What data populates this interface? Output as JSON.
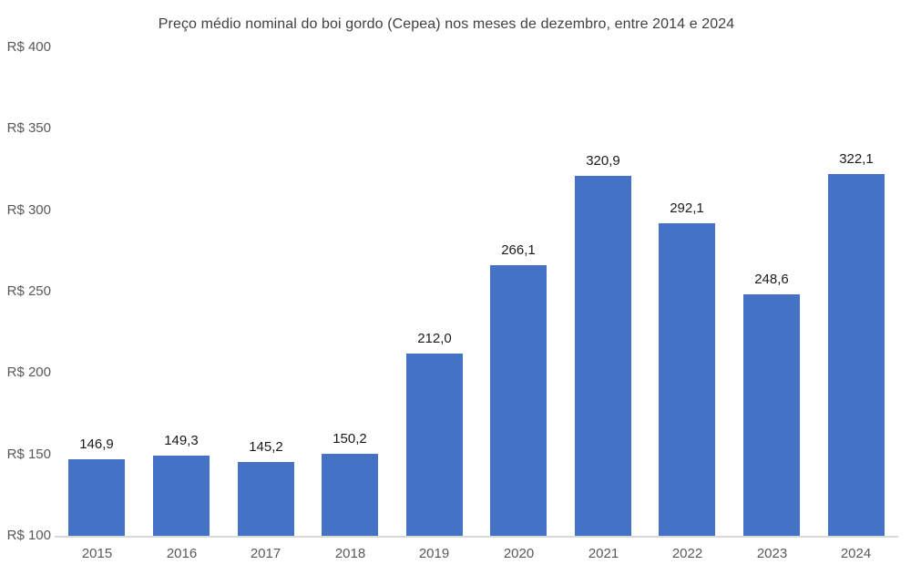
{
  "chart_data": {
    "type": "bar",
    "title": "Preço médio nominal do boi gordo (Cepea) nos meses de dezembro, entre 2014 e 2024",
    "categories": [
      "2015",
      "2016",
      "2017",
      "2018",
      "2019",
      "2020",
      "2021",
      "2022",
      "2023",
      "2024"
    ],
    "values": [
      146.9,
      149.3,
      145.2,
      150.2,
      212.0,
      266.1,
      320.9,
      292.1,
      248.6,
      322.1
    ],
    "value_labels": [
      "146,9",
      "149,3",
      "145,2",
      "150,2",
      "212,0",
      "266,1",
      "320,9",
      "292,1",
      "248,6",
      "322,1"
    ],
    "xlabel": "",
    "ylabel": "",
    "ylim": [
      100,
      400
    ],
    "y_ticks": [
      100,
      150,
      200,
      250,
      300,
      350,
      400
    ],
    "y_tick_labels": [
      "R$ 100",
      "R$ 150",
      "R$ 200",
      "R$ 250",
      "R$ 300",
      "R$ 350",
      "R$ 400"
    ],
    "grid": false,
    "legend": "none",
    "bar_color": "#4472C4"
  },
  "colors": {
    "bar": "#4472C4",
    "title_text": "#404040",
    "axis_text": "#595959",
    "data_label_text": "#1a1a1a",
    "axis_line": "#d9d9d9",
    "background": "#ffffff"
  }
}
